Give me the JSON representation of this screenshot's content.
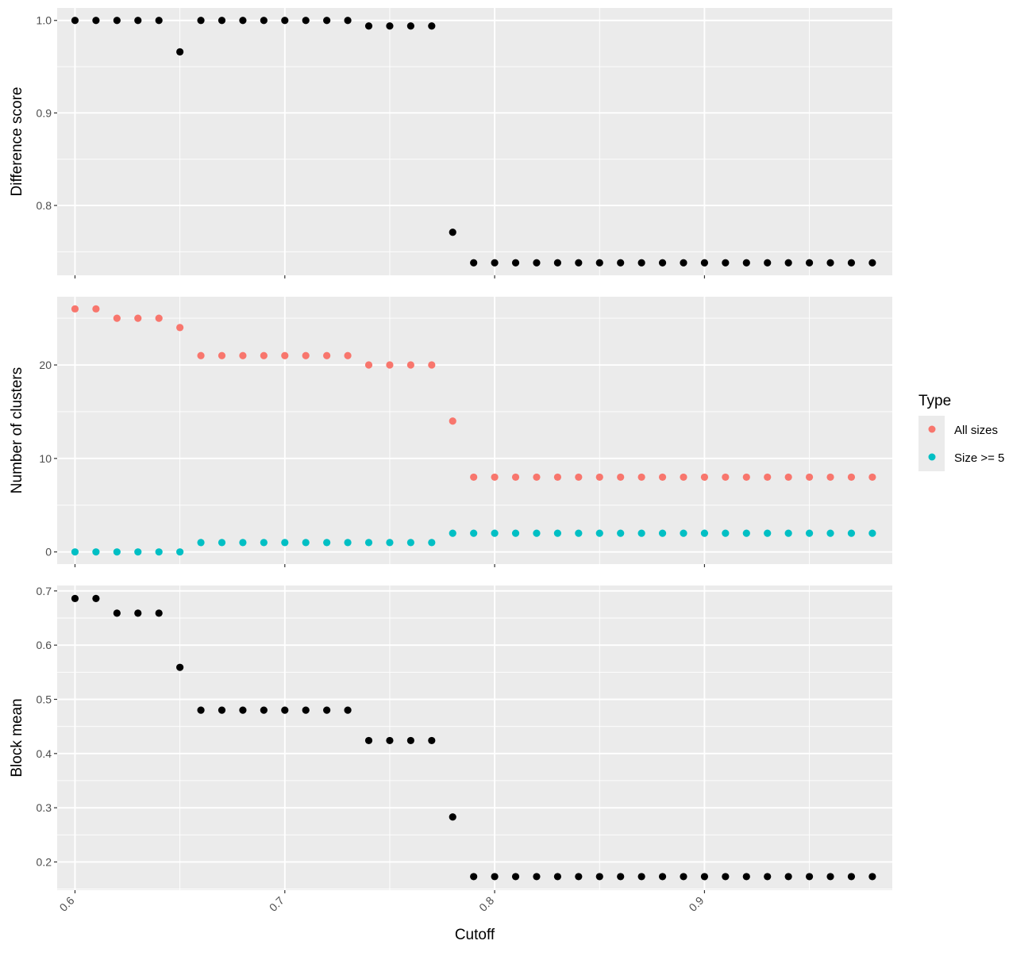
{
  "chart_data": [
    {
      "type": "scatter",
      "ylabel": "Difference score",
      "x": [
        0.6,
        0.61,
        0.62,
        0.63,
        0.64,
        0.65,
        0.66,
        0.67,
        0.68,
        0.69,
        0.7,
        0.71,
        0.72,
        0.73,
        0.74,
        0.75,
        0.76,
        0.77,
        0.78,
        0.79,
        0.8,
        0.81,
        0.82,
        0.83,
        0.84,
        0.85,
        0.86,
        0.87,
        0.88,
        0.89,
        0.9,
        0.91,
        0.92,
        0.93,
        0.94,
        0.95,
        0.96,
        0.97,
        0.98
      ],
      "series": [
        {
          "color": "#000000",
          "values": [
            1.0,
            1.0,
            1.0,
            1.0,
            1.0,
            0.966,
            1.0,
            1.0,
            1.0,
            1.0,
            1.0,
            1.0,
            1.0,
            1.0,
            0.994,
            0.994,
            0.994,
            0.994,
            0.771,
            0.738,
            0.738,
            0.738,
            0.738,
            0.738,
            0.738,
            0.738,
            0.738,
            0.738,
            0.738,
            0.738,
            0.738,
            0.738,
            0.738,
            0.738,
            0.738,
            0.738,
            0.738,
            0.738,
            0.738
          ]
        }
      ],
      "xlim": [
        0.5915,
        0.9895
      ],
      "ylim": [
        0.7245,
        1.0135
      ],
      "yticks": [
        0.8,
        0.9,
        1.0
      ],
      "ytick_labels": [
        "0.8",
        "0.9",
        "1.0"
      ],
      "grid": true
    },
    {
      "type": "scatter",
      "ylabel": "Number of clusters",
      "x": [
        0.6,
        0.61,
        0.62,
        0.63,
        0.64,
        0.65,
        0.66,
        0.67,
        0.68,
        0.69,
        0.7,
        0.71,
        0.72,
        0.73,
        0.74,
        0.75,
        0.76,
        0.77,
        0.78,
        0.79,
        0.8,
        0.81,
        0.82,
        0.83,
        0.84,
        0.85,
        0.86,
        0.87,
        0.88,
        0.89,
        0.9,
        0.91,
        0.92,
        0.93,
        0.94,
        0.95,
        0.96,
        0.97,
        0.98
      ],
      "series": [
        {
          "name": "All sizes",
          "color": "#F8766D",
          "values": [
            26,
            26,
            25,
            25,
            25,
            24,
            21,
            21,
            21,
            21,
            21,
            21,
            21,
            21,
            20,
            20,
            20,
            20,
            14,
            8,
            8,
            8,
            8,
            8,
            8,
            8,
            8,
            8,
            8,
            8,
            8,
            8,
            8,
            8,
            8,
            8,
            8,
            8,
            8
          ]
        },
        {
          "name": "Size >= 5",
          "color": "#00BFC4",
          "values": [
            0,
            0,
            0,
            0,
            0,
            0,
            1,
            1,
            1,
            1,
            1,
            1,
            1,
            1,
            1,
            1,
            1,
            1,
            2,
            2,
            2,
            2,
            2,
            2,
            2,
            2,
            2,
            2,
            2,
            2,
            2,
            2,
            2,
            2,
            2,
            2,
            2,
            2,
            2
          ]
        }
      ],
      "xlim": [
        0.5915,
        0.9895
      ],
      "ylim": [
        -1.3,
        27.3
      ],
      "yticks": [
        0,
        10,
        20
      ],
      "ytick_labels": [
        "0",
        "10",
        "20"
      ],
      "grid": true
    },
    {
      "type": "scatter",
      "ylabel": "Block mean",
      "xlabel": "Cutoff",
      "x": [
        0.6,
        0.61,
        0.62,
        0.63,
        0.64,
        0.65,
        0.66,
        0.67,
        0.68,
        0.69,
        0.7,
        0.71,
        0.72,
        0.73,
        0.74,
        0.75,
        0.76,
        0.77,
        0.78,
        0.79,
        0.8,
        0.81,
        0.82,
        0.83,
        0.84,
        0.85,
        0.86,
        0.87,
        0.88,
        0.89,
        0.9,
        0.91,
        0.92,
        0.93,
        0.94,
        0.95,
        0.96,
        0.97,
        0.98
      ],
      "series": [
        {
          "color": "#000000",
          "values": [
            0.686,
            0.686,
            0.659,
            0.659,
            0.659,
            0.559,
            0.48,
            0.48,
            0.48,
            0.48,
            0.48,
            0.48,
            0.48,
            0.48,
            0.424,
            0.424,
            0.424,
            0.424,
            0.283,
            0.173,
            0.173,
            0.173,
            0.173,
            0.173,
            0.173,
            0.173,
            0.173,
            0.173,
            0.173,
            0.173,
            0.173,
            0.173,
            0.173,
            0.173,
            0.173,
            0.173,
            0.173,
            0.173,
            0.173
          ]
        }
      ],
      "xlim": [
        0.5915,
        0.9895
      ],
      "ylim": [
        0.148,
        0.71
      ],
      "yticks": [
        0.2,
        0.3,
        0.4,
        0.5,
        0.6,
        0.7
      ],
      "ytick_labels": [
        "0.2",
        "0.3",
        "0.4",
        "0.5",
        "0.6",
        "0.7"
      ],
      "xticks": [
        0.6,
        0.7,
        0.8,
        0.9
      ],
      "xtick_labels": [
        "0.6",
        "0.7",
        "0.8",
        "0.9"
      ],
      "grid": true
    }
  ],
  "legend": {
    "title": "Type",
    "placement": "right",
    "entries": [
      {
        "label": "All sizes",
        "color": "#F8766D"
      },
      {
        "label": "Size >= 5",
        "color": "#00BFC4"
      }
    ]
  }
}
